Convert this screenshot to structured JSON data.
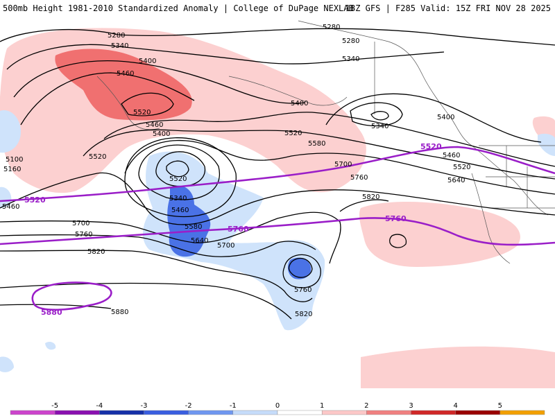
{
  "header": {
    "title": "500mb Height 1981-2010 Standardized Anomaly | College of DuPage NEXLAB",
    "valid": "18Z GFS | F285 Valid: 15Z FRI NOV 28 2025"
  },
  "contour_labels": [
    {
      "id": "c1",
      "text": "5280"
    },
    {
      "id": "c2",
      "text": "5340"
    },
    {
      "id": "c3",
      "text": "5400"
    },
    {
      "id": "c4",
      "text": "5460"
    },
    {
      "id": "c5",
      "text": "5520"
    },
    {
      "id": "c6",
      "text": "5280"
    },
    {
      "id": "c7",
      "text": "5280"
    },
    {
      "id": "c8",
      "text": "5340"
    },
    {
      "id": "c9",
      "text": "5400"
    },
    {
      "id": "c10",
      "text": "5340"
    },
    {
      "id": "c11",
      "text": "5400"
    },
    {
      "id": "c12",
      "text": "5460"
    },
    {
      "id": "c13",
      "text": "5400"
    },
    {
      "id": "c14",
      "text": "5520"
    },
    {
      "id": "c15",
      "text": "5580"
    },
    {
      "id": "c16",
      "text": "5520"
    },
    {
      "id": "c17",
      "text": "5460"
    },
    {
      "id": "c18",
      "text": "5520"
    },
    {
      "id": "c19",
      "text": "5640"
    },
    {
      "id": "c20",
      "text": "5700"
    },
    {
      "id": "c21",
      "text": "5760"
    },
    {
      "id": "c22",
      "text": "5820"
    },
    {
      "id": "c23",
      "text": "5100"
    },
    {
      "id": "c24",
      "text": "5160"
    },
    {
      "id": "c25",
      "text": "5460"
    },
    {
      "id": "c26",
      "text": "5520"
    },
    {
      "id": "c27",
      "text": "5340"
    },
    {
      "id": "c28",
      "text": "5460"
    },
    {
      "id": "c29",
      "text": "5580"
    },
    {
      "id": "c30",
      "text": "5640"
    },
    {
      "id": "c31",
      "text": "5700"
    },
    {
      "id": "c32",
      "text": "5700"
    },
    {
      "id": "c33",
      "text": "5760"
    },
    {
      "id": "c34",
      "text": "5820"
    },
    {
      "id": "c35",
      "text": "5760"
    },
    {
      "id": "c36",
      "text": "5820"
    },
    {
      "id": "c37",
      "text": "5880"
    }
  ],
  "purple_labels": [
    {
      "id": "p1",
      "text": "5520"
    },
    {
      "id": "p2",
      "text": "5520"
    },
    {
      "id": "p3",
      "text": "5760"
    },
    {
      "id": "p4",
      "text": "5760"
    },
    {
      "id": "p5",
      "text": "5880"
    }
  ],
  "colorbar": {
    "ticks": [
      "-5",
      "-4",
      "-3",
      "-2",
      "-1",
      "0",
      "1",
      "2",
      "3",
      "4",
      "5"
    ],
    "colors": [
      "#cc44cc",
      "#8a10b0",
      "#1530a8",
      "#3a5ee0",
      "#6f97f0",
      "#c6dcfa",
      "#ffffff",
      "#fcc8c8",
      "#f08080",
      "#d02828",
      "#9a0000",
      "#f2a000"
    ]
  },
  "colors": {
    "positive_light": "#fcd0d0",
    "positive_mid": "#f07070",
    "negative_light": "#cfe3fb",
    "negative_mid": "#4a72e6",
    "purple_contour": "#9a1ec8"
  }
}
